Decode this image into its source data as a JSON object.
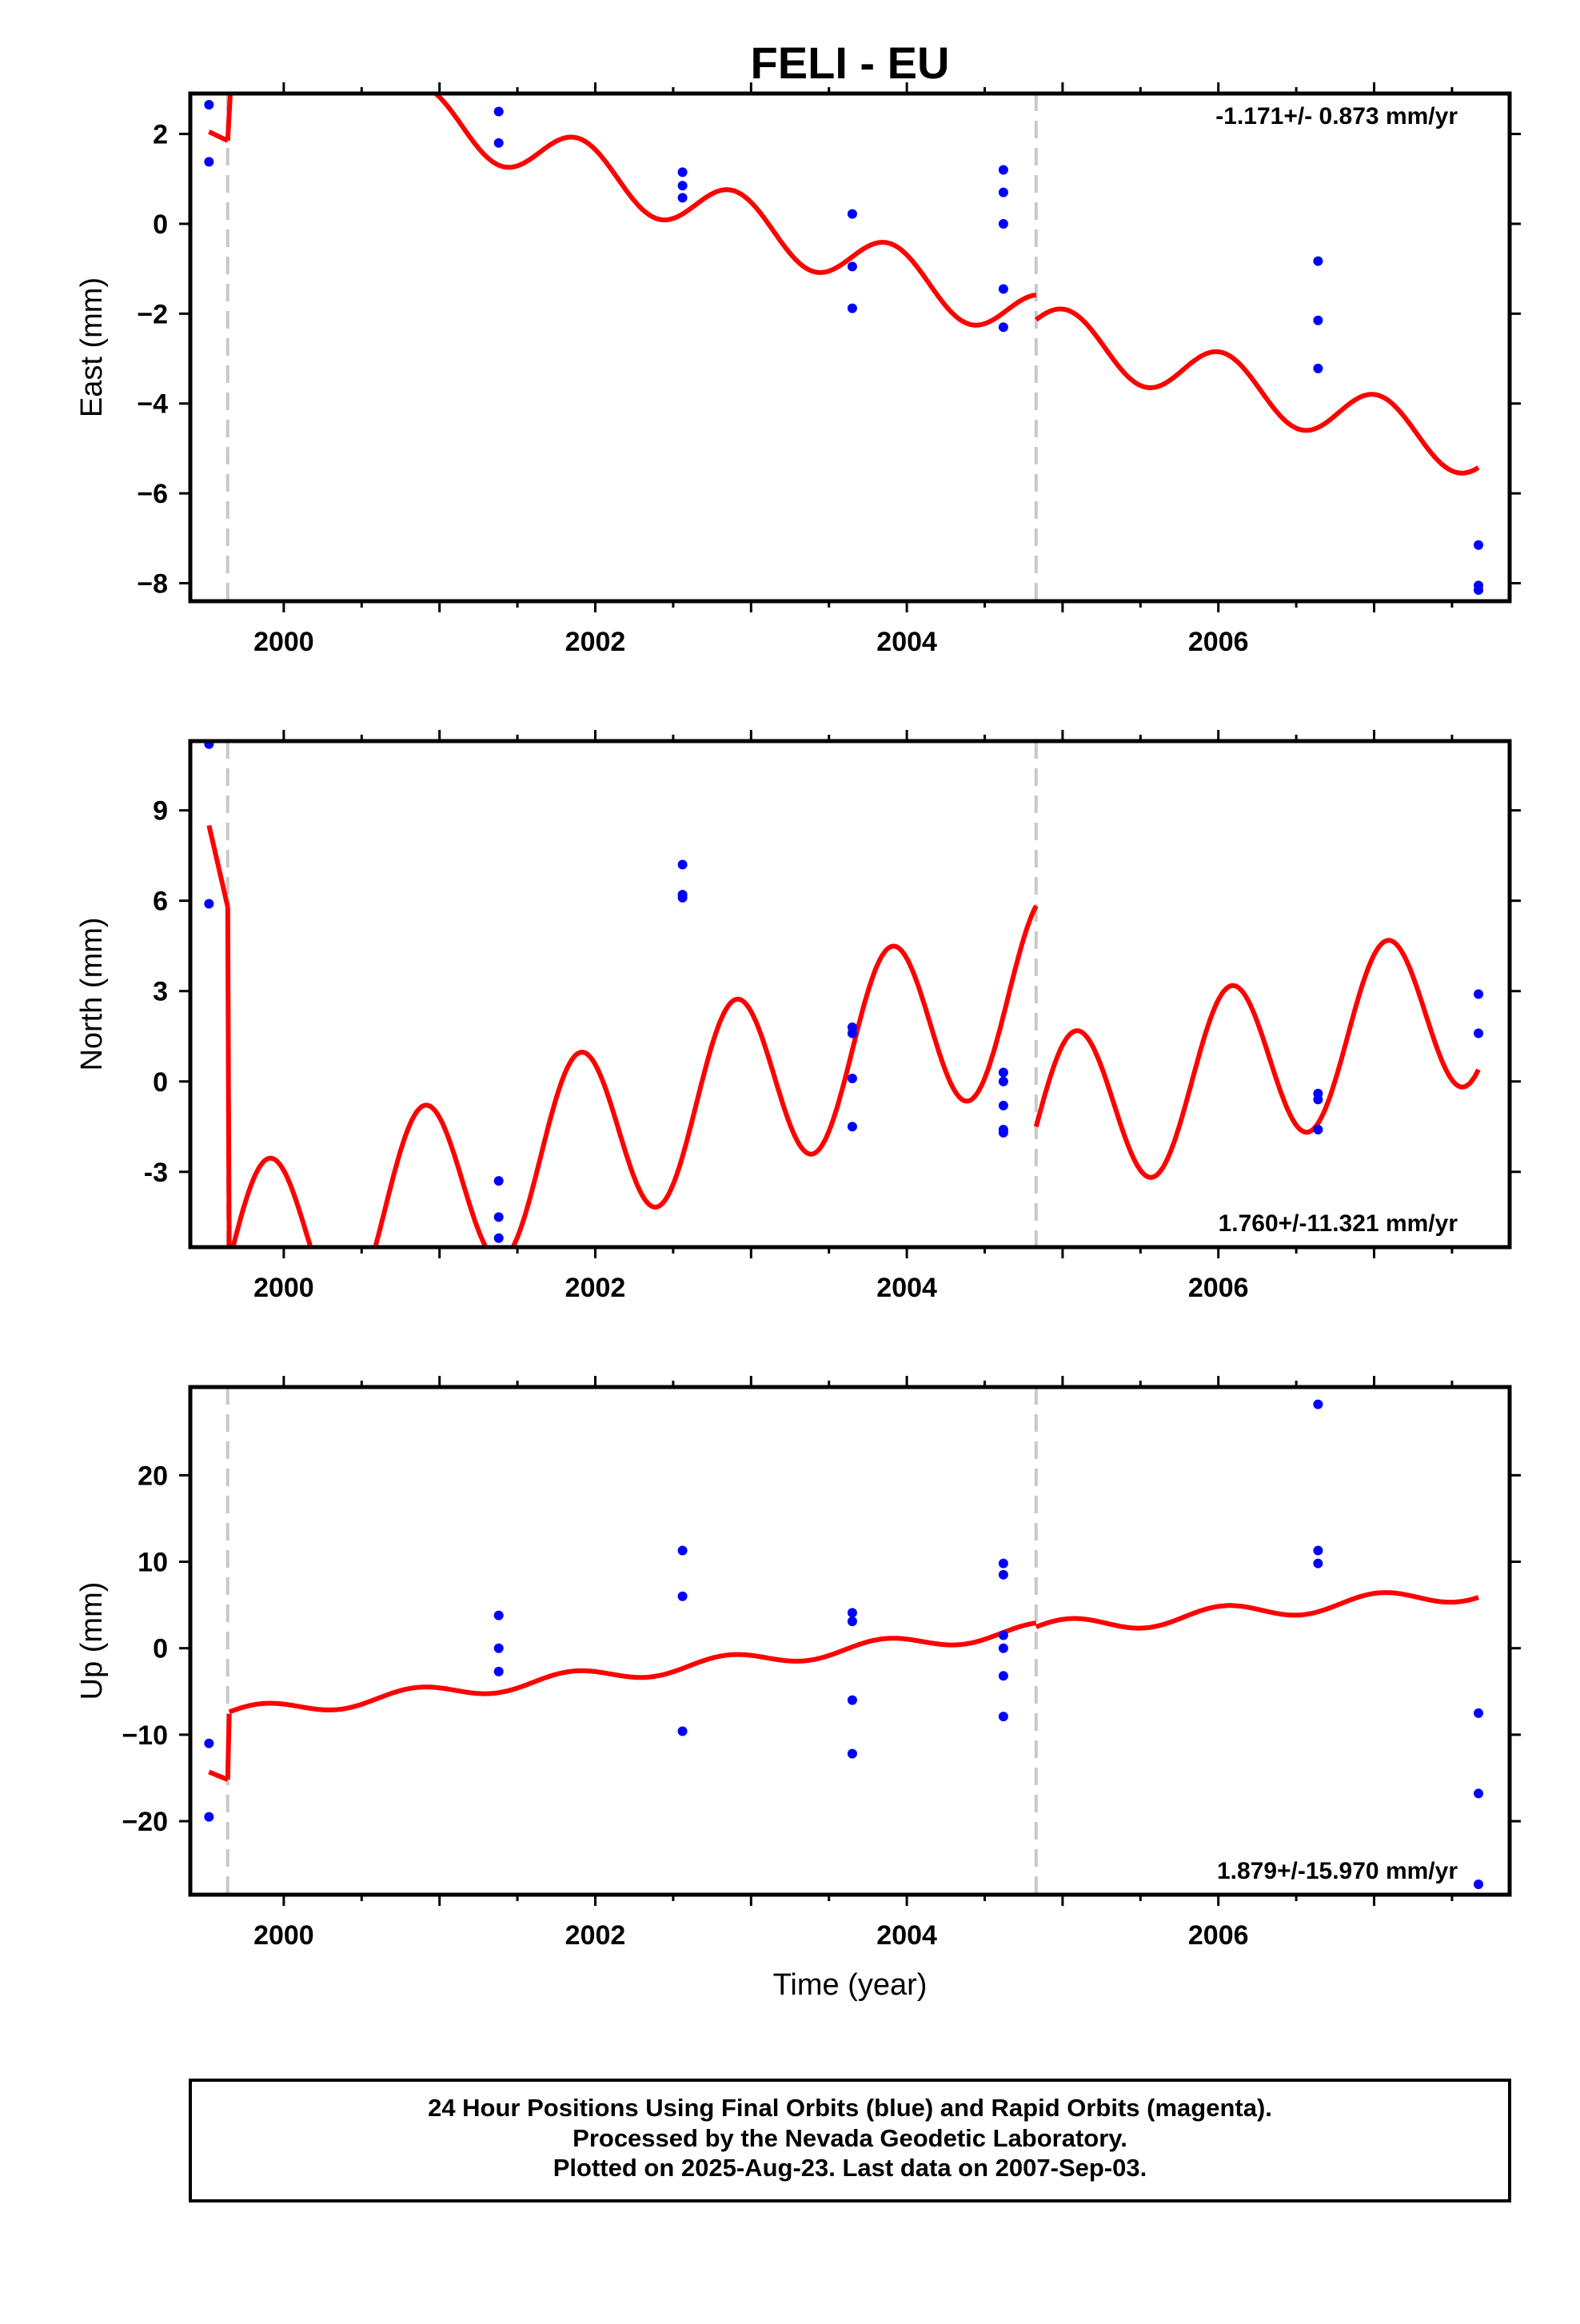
{
  "title": "FELI - EU",
  "colors": {
    "model": "#ff0000",
    "final": "#0000ff",
    "break": "#c8c8c8",
    "frame": "#000000"
  },
  "caption": {
    "line1": "24 Hour Positions Using Final Orbits (blue) and Rapid Orbits (magenta).",
    "line2": "Processed by the Nevada Geodetic Laboratory.",
    "line3": "Plotted on 2025-Aug-23. Last data on 2007-Sep-03."
  },
  "chart_data": [
    {
      "type": "scatter",
      "name": "east",
      "ylabel": "East (mm)",
      "xlabel": "",
      "rate": "-1.171+/- 0.873 mm/yr",
      "xlim": [
        1999.4,
        2007.87
      ],
      "ylim": [
        -8.4,
        2.9
      ],
      "xticks": [
        2000,
        2002,
        2004,
        2006
      ],
      "xtick_labels": [
        "2000",
        "2002",
        "2004",
        "2006"
      ],
      "yticks": [
        2,
        0,
        -2,
        -4,
        -6,
        -8
      ],
      "ytick_labels": [
        "2",
        "0",
        "−2",
        "−4",
        "−6",
        "−8"
      ],
      "breaks": [
        1999.64,
        2004.83
      ],
      "points": [
        [
          1999.52,
          2.65
        ],
        [
          1999.52,
          1.38
        ],
        [
          2001.38,
          2.5
        ],
        [
          2001.38,
          1.8
        ],
        [
          2002.56,
          1.15
        ],
        [
          2002.56,
          0.85
        ],
        [
          2002.56,
          0.58
        ],
        [
          2003.65,
          0.22
        ],
        [
          2003.65,
          -0.95
        ],
        [
          2003.65,
          -1.88
        ],
        [
          2004.62,
          1.2
        ],
        [
          2004.62,
          0.7
        ],
        [
          2004.62,
          0.0
        ],
        [
          2004.62,
          -1.45
        ],
        [
          2004.62,
          -2.3
        ],
        [
          2006.64,
          -0.83
        ],
        [
          2006.64,
          -2.15
        ],
        [
          2006.64,
          -3.22
        ],
        [
          2007.67,
          -7.15
        ],
        [
          2007.67,
          -8.05
        ],
        [
          2007.67,
          -8.15
        ]
      ],
      "model": {
        "segments": [
          {
            "from": 1999.52,
            "to": 1999.64,
            "start": 2.05,
            "end": 1.85
          },
          {
            "from": 1999.64,
            "to": 1999.66,
            "start": 1.85,
            "end": 3.1
          },
          {
            "from": 2000.7,
            "to": 2004.83,
            "base": 2.7,
            "rate": -1.171,
            "t0": 2000.7,
            "amp": 0.6,
            "phase": 0.35
          },
          {
            "from": 2004.83,
            "to": 2007.67,
            "base": -2.35,
            "rate": -0.95,
            "t0": 2004.83,
            "amp": 0.62,
            "phase": 0.35
          }
        ]
      }
    },
    {
      "type": "scatter",
      "name": "north",
      "ylabel": "North (mm)",
      "xlabel": "",
      "rate": "1.760+/-11.321 mm/yr",
      "xlim": [
        1999.4,
        2007.87
      ],
      "ylim": [
        -5.5,
        11.3
      ],
      "xticks": [
        2000,
        2002,
        2004,
        2006
      ],
      "xtick_labels": [
        "2000",
        "2002",
        "2004",
        "2006"
      ],
      "yticks": [
        9,
        6,
        3,
        0,
        -3
      ],
      "ytick_labels": [
        "9",
        "6",
        "3",
        "0",
        "-3"
      ],
      "breaks": [
        1999.64,
        2004.83
      ],
      "points": [
        [
          1999.52,
          11.2
        ],
        [
          1999.52,
          5.9
        ],
        [
          2001.38,
          -3.3
        ],
        [
          2001.38,
          -4.5
        ],
        [
          2001.38,
          -5.2
        ],
        [
          2002.56,
          7.2
        ],
        [
          2002.56,
          6.2
        ],
        [
          2002.56,
          6.1
        ],
        [
          2003.65,
          1.8
        ],
        [
          2003.65,
          1.6
        ],
        [
          2003.65,
          0.1
        ],
        [
          2003.65,
          -1.5
        ],
        [
          2004.62,
          0.3
        ],
        [
          2004.62,
          0.0
        ],
        [
          2004.62,
          -0.8
        ],
        [
          2004.62,
          -1.6
        ],
        [
          2004.62,
          -1.7
        ],
        [
          2006.64,
          -0.4
        ],
        [
          2006.64,
          -0.6
        ],
        [
          2006.64,
          -1.6
        ],
        [
          2007.67,
          2.9
        ],
        [
          2007.67,
          1.6
        ]
      ],
      "model": {
        "segments": [
          {
            "from": 1999.52,
            "to": 1999.64,
            "start": 8.5,
            "end": 5.8
          },
          {
            "from": 1999.64,
            "to": 1999.65,
            "start": 5.8,
            "end": -6.0
          },
          {
            "from": 1999.65,
            "to": 2004.83,
            "base": -6.0,
            "rate": 1.76,
            "t0": 1999.65,
            "amp": 3.0,
            "phase": 0.0
          },
          {
            "from": 2004.83,
            "to": 2007.67,
            "base": -1.5,
            "rate": 1.5,
            "t0": 2004.83,
            "amp": 2.8,
            "phase": 0.0
          }
        ]
      }
    },
    {
      "type": "scatter",
      "name": "up",
      "ylabel": "Up (mm)",
      "xlabel": "Time (year)",
      "rate": "1.879+/-15.970 mm/yr",
      "xlim": [
        1999.4,
        2007.87
      ],
      "ylim": [
        -28.5,
        30.2
      ],
      "xticks": [
        2000,
        2002,
        2004,
        2006
      ],
      "xtick_labels": [
        "2000",
        "2002",
        "2004",
        "2006"
      ],
      "yticks": [
        20,
        10,
        0,
        -10,
        -20
      ],
      "ytick_labels": [
        "20",
        "10",
        "0",
        "−10",
        "−20"
      ],
      "breaks": [
        1999.64,
        2004.83
      ],
      "points": [
        [
          1999.52,
          -11.0
        ],
        [
          1999.52,
          -19.5
        ],
        [
          2001.38,
          3.8
        ],
        [
          2001.38,
          0.0
        ],
        [
          2001.38,
          -2.7
        ],
        [
          2002.56,
          11.3
        ],
        [
          2002.56,
          6.0
        ],
        [
          2002.56,
          -9.6
        ],
        [
          2003.65,
          4.1
        ],
        [
          2003.65,
          3.1
        ],
        [
          2003.65,
          -6.0
        ],
        [
          2003.65,
          -12.2
        ],
        [
          2004.62,
          9.8
        ],
        [
          2004.62,
          8.5
        ],
        [
          2004.62,
          1.5
        ],
        [
          2004.62,
          0.0
        ],
        [
          2004.62,
          -3.2
        ],
        [
          2004.62,
          -7.9
        ],
        [
          2006.64,
          28.2
        ],
        [
          2006.64,
          11.3
        ],
        [
          2006.64,
          9.8
        ],
        [
          2007.67,
          -7.5
        ],
        [
          2007.67,
          -16.8
        ],
        [
          2007.67,
          -27.3
        ]
      ],
      "model": {
        "segments": [
          {
            "from": 1999.52,
            "to": 1999.64,
            "start": -14.3,
            "end": -15.2
          },
          {
            "from": 1999.64,
            "to": 1999.65,
            "start": -15.2,
            "end": -7.6
          },
          {
            "from": 1999.65,
            "to": 2004.83,
            "base": -7.6,
            "rate": 1.879,
            "t0": 1999.65,
            "amp": 0.8,
            "phase": 0.3
          },
          {
            "from": 2004.83,
            "to": 2007.67,
            "base": 2.2,
            "rate": 1.5,
            "t0": 2004.83,
            "amp": 0.9,
            "phase": 0.3
          }
        ]
      }
    }
  ]
}
